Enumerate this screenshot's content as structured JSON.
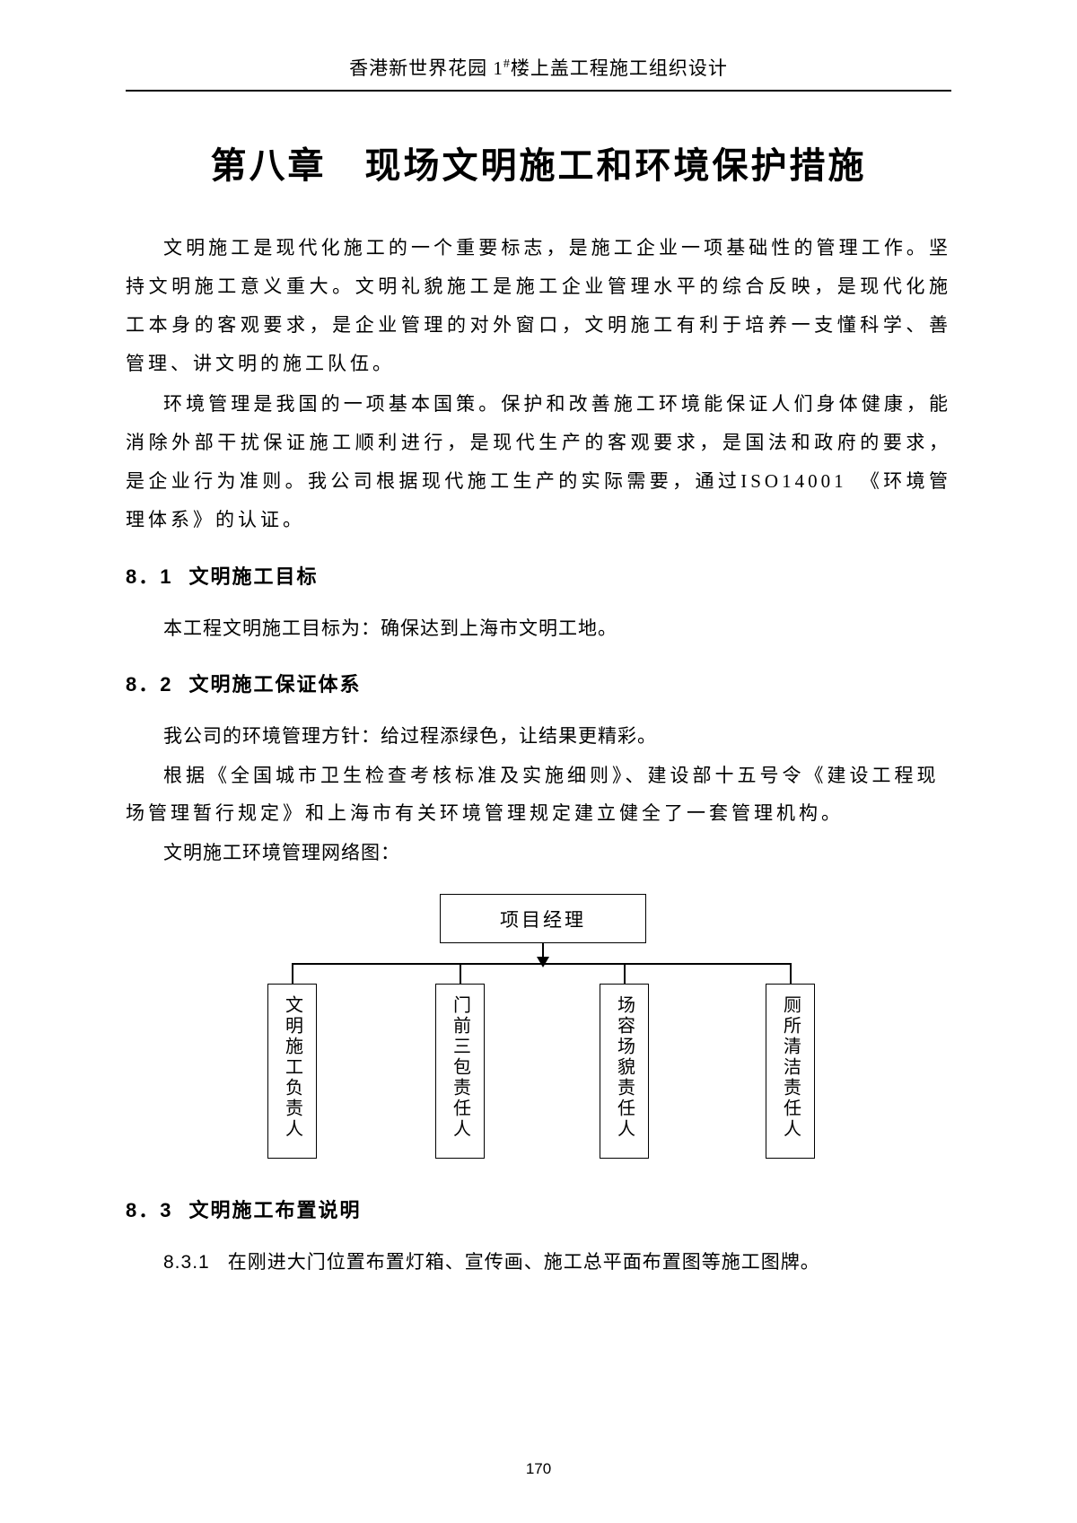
{
  "header": {
    "text_before_sup": "香港新世界花园 1",
    "sup": "#",
    "text_after_sup": "楼上盖工程施工组织设计"
  },
  "chapter_title": "第八章　现场文明施工和环境保护措施",
  "intro_paragraphs": [
    "文明施工是现代化施工的一个重要标志，是施工企业一项基础性的管理工作。坚持文明施工意义重大。文明礼貌施工是施工企业管理水平的综合反映，是现代化施工本身的客观要求，是企业管理的对外窗口，文明施工有利于培养一支懂科学、善管理、讲文明的施工队伍。",
    "环境管理是我国的一项基本国策。保护和改善施工环境能保证人们身体健康，能消除外部干扰保证施工顺利进行，是现代生产的客观要求，是国法和政府的要求，是企业行为准则。我公司根据现代施工生产的实际需要，通过ISO14001　《环境管理体系》的认证。"
  ],
  "sections": {
    "s1": {
      "number": "8．1",
      "title": "文明施工目标",
      "body": [
        "本工程文明施工目标为：确保达到上海市文明工地。"
      ]
    },
    "s2": {
      "number": "8．2",
      "title": "文明施工保证体系",
      "body": [
        "我公司的环境管理方针：给过程添绿色，让结果更精彩。",
        "根据《全国城市卫生检查考核标准及实施细则》、建设部十五号令《建设工程现场管理暂行规定》和上海市有关环境管理规定建立健全了一套管理机构。",
        "文明施工环境管理网络图："
      ]
    },
    "s3": {
      "number": "8．3",
      "title": "文明施工布置说明",
      "items": [
        {
          "number": "8.3.1",
          "text": "在刚进大门位置布置灯箱、宣传画、施工总平面布置图等施工图牌。"
        }
      ]
    }
  },
  "diagram": {
    "type": "tree",
    "top_node": "项目经理",
    "children": [
      "文明施工负责人",
      "门前三包责任人",
      "场容场貌责任人",
      "厕所清洁责任人"
    ],
    "box_border_color": "#000000",
    "line_color": "#000000",
    "background_color": "#ffffff",
    "font_size": 20
  },
  "page_number": "170",
  "colors": {
    "text": "#000000",
    "background": "#ffffff",
    "border": "#000000"
  }
}
